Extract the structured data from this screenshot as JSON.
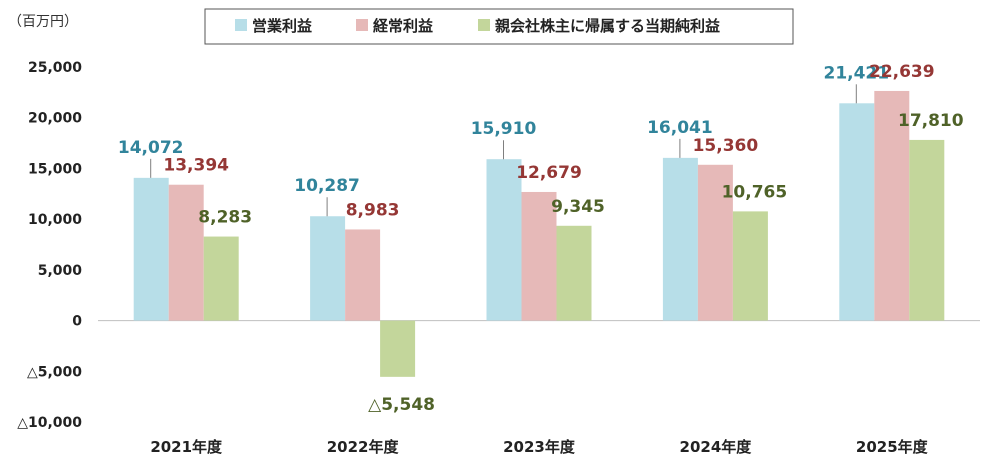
{
  "chart_data": {
    "type": "bar",
    "unit_label": "（百万円）",
    "categories": [
      "2021年度",
      "2022年度",
      "2023年度",
      "2024年度",
      "2025年度"
    ],
    "series": [
      {
        "name": "営業利益",
        "color": "#b7dee8",
        "label_color": "#31849b",
        "values": [
          14072,
          10287,
          15910,
          16041,
          21421
        ],
        "labels": [
          "14,072",
          "10,287",
          "15,910",
          "16,041",
          "21,421"
        ]
      },
      {
        "name": "経常利益",
        "color": "#e6b9b8",
        "label_color": "#953735",
        "values": [
          13394,
          8983,
          12679,
          15360,
          22639
        ],
        "labels": [
          "13,394",
          "8,983",
          "12,679",
          "15,360",
          "22,639"
        ]
      },
      {
        "name": "親会社株主に帰属する当期純利益",
        "color": "#c3d69b",
        "label_color": "#4f6228",
        "values": [
          8283,
          -5548,
          9345,
          10765,
          17810
        ],
        "labels": [
          "8,283",
          "△5,548",
          "9,345",
          "10,765",
          "17,810"
        ]
      }
    ],
    "y_ticks": [
      25000,
      20000,
      15000,
      10000,
      5000,
      0,
      -5000,
      -10000
    ],
    "y_tick_labels": [
      "25,000",
      "20,000",
      "15,000",
      "10,000",
      "5,000",
      "0",
      "△5,000",
      "△10,000"
    ],
    "ylim": [
      -10000,
      25000
    ],
    "legend_position": "top-center"
  }
}
